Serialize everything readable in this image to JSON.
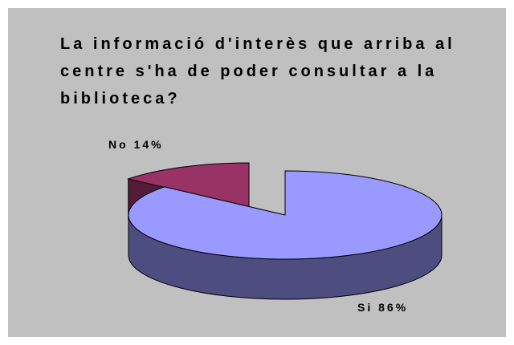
{
  "chart_data": {
    "type": "pie3d",
    "title": "La informació d'interès que arriba al centre s'ha de poder consultar a la biblioteca?",
    "categories": [
      "No",
      "Si"
    ],
    "values": [
      14,
      86
    ],
    "value_labels": [
      "14%",
      "86%"
    ],
    "colors": [
      "#993366",
      "#9999ff"
    ],
    "exploded": [
      true,
      false
    ]
  }
}
